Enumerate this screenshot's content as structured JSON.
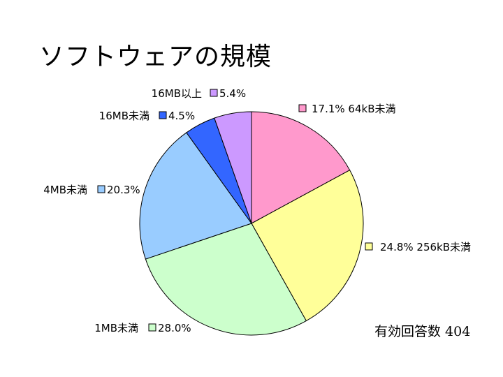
{
  "title": "ソフトウェアの規模",
  "footer": {
    "label": "有効回答数",
    "value": "404"
  },
  "chart_data": {
    "type": "pie",
    "title": "ソフトウェアの規模",
    "slices": [
      {
        "label": "64kB未満",
        "percent_text": "17.1%",
        "value": 17.1,
        "color": "#FF99CC"
      },
      {
        "label": "256kB未満",
        "percent_text": "24.8%",
        "value": 24.8,
        "color": "#FFFF99"
      },
      {
        "label": "1MB未満",
        "percent_text": "28.0%",
        "value": 28.0,
        "color": "#CCFFCC"
      },
      {
        "label": "4MB未満",
        "percent_text": "20.3%",
        "value": 20.3,
        "color": "#99CCFF"
      },
      {
        "label": "16MB未満",
        "percent_text": "4.5%",
        "value": 4.5,
        "color": "#3366FF"
      },
      {
        "label": "16MB以上",
        "percent_text": "5.4%",
        "value": 5.4,
        "color": "#CC99FF"
      }
    ],
    "start": "12 o'clock",
    "direction": "clockwise",
    "legend": "none (labels placed beside slices)"
  }
}
